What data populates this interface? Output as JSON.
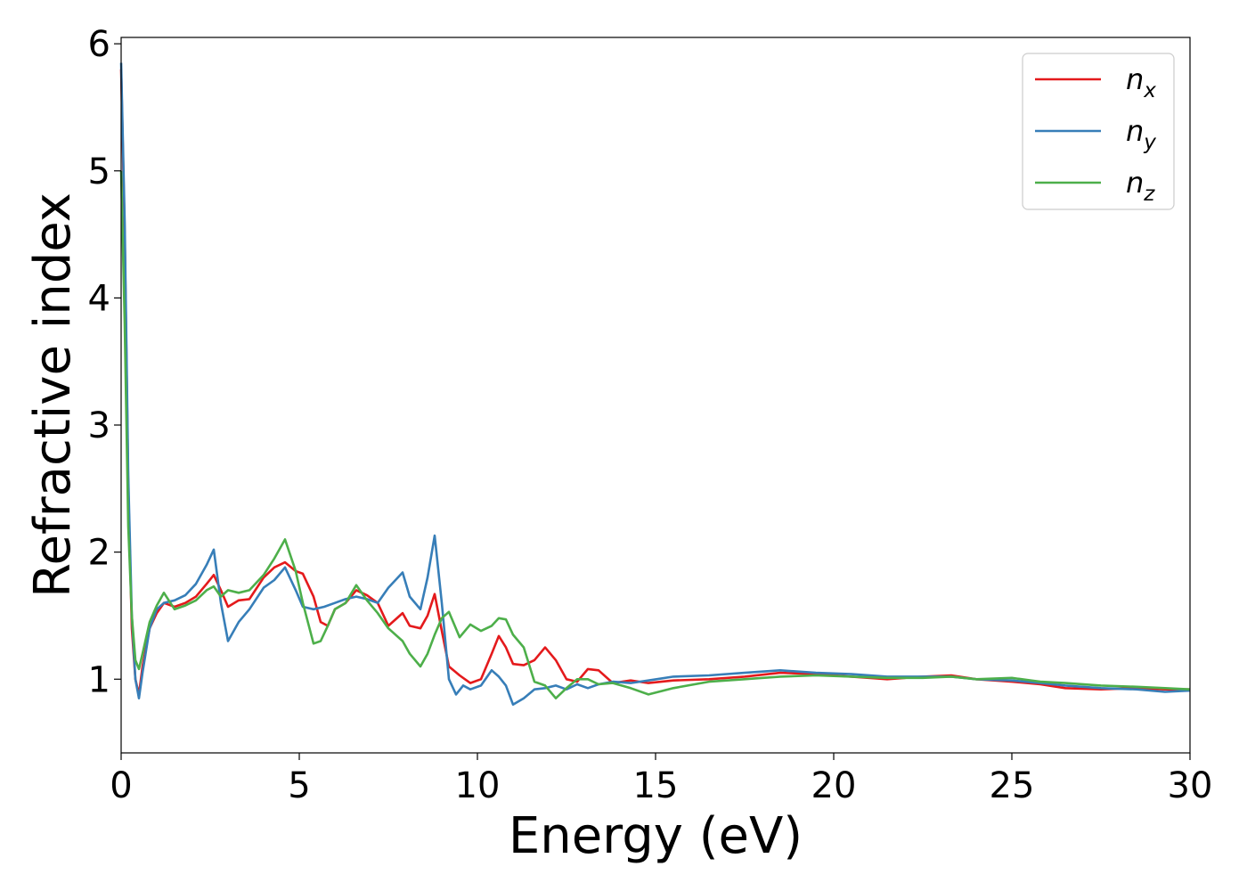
{
  "chart_data": {
    "type": "line",
    "title": "",
    "xlabel": "Energy (eV)",
    "ylabel": "Refractive index",
    "xlim": [
      0,
      30
    ],
    "ylim": [
      0.42,
      6.05
    ],
    "xticks": [
      0,
      5,
      10,
      15,
      20,
      25,
      30
    ],
    "xtick_labels": [
      "0",
      "5",
      "10",
      "15",
      "20",
      "25",
      "30"
    ],
    "yticks": [
      1,
      2,
      3,
      4,
      5,
      6
    ],
    "ytick_labels": [
      "1",
      "2",
      "3",
      "4",
      "5",
      "6"
    ],
    "grid": false,
    "legend_position": "top-right",
    "series": [
      {
        "name": "n_x",
        "label_base": "n",
        "label_sub": "x",
        "color": "#e41a1c",
        "points": [
          [
            0,
            5.8
          ],
          [
            0.1,
            4.5
          ],
          [
            0.2,
            2.5
          ],
          [
            0.3,
            1.4
          ],
          [
            0.4,
            1.0
          ],
          [
            0.5,
            0.88
          ],
          [
            0.6,
            1.1
          ],
          [
            0.8,
            1.4
          ],
          [
            1.0,
            1.52
          ],
          [
            1.2,
            1.6
          ],
          [
            1.5,
            1.57
          ],
          [
            1.8,
            1.6
          ],
          [
            2.1,
            1.65
          ],
          [
            2.4,
            1.75
          ],
          [
            2.6,
            1.82
          ],
          [
            2.8,
            1.7
          ],
          [
            3.0,
            1.57
          ],
          [
            3.3,
            1.62
          ],
          [
            3.6,
            1.63
          ],
          [
            4.0,
            1.8
          ],
          [
            4.3,
            1.88
          ],
          [
            4.6,
            1.92
          ],
          [
            4.9,
            1.85
          ],
          [
            5.1,
            1.83
          ],
          [
            5.4,
            1.65
          ],
          [
            5.6,
            1.45
          ],
          [
            5.8,
            1.42
          ],
          [
            6.0,
            1.55
          ],
          [
            6.3,
            1.6
          ],
          [
            6.6,
            1.7
          ],
          [
            6.9,
            1.66
          ],
          [
            7.2,
            1.6
          ],
          [
            7.5,
            1.42
          ],
          [
            7.9,
            1.52
          ],
          [
            8.1,
            1.42
          ],
          [
            8.4,
            1.4
          ],
          [
            8.6,
            1.5
          ],
          [
            8.8,
            1.67
          ],
          [
            9.0,
            1.38
          ],
          [
            9.2,
            1.1
          ],
          [
            9.5,
            1.03
          ],
          [
            9.8,
            0.97
          ],
          [
            10.1,
            1.0
          ],
          [
            10.4,
            1.2
          ],
          [
            10.6,
            1.34
          ],
          [
            10.8,
            1.25
          ],
          [
            11.0,
            1.12
          ],
          [
            11.3,
            1.11
          ],
          [
            11.6,
            1.15
          ],
          [
            11.9,
            1.25
          ],
          [
            12.2,
            1.15
          ],
          [
            12.5,
            1.0
          ],
          [
            12.8,
            0.98
          ],
          [
            13.1,
            1.08
          ],
          [
            13.4,
            1.07
          ],
          [
            13.8,
            0.97
          ],
          [
            14.3,
            0.99
          ],
          [
            14.8,
            0.97
          ],
          [
            15.5,
            0.99
          ],
          [
            16.5,
            1.0
          ],
          [
            17.5,
            1.02
          ],
          [
            18.5,
            1.05
          ],
          [
            19.5,
            1.04
          ],
          [
            20.5,
            1.02
          ],
          [
            21.5,
            1.0
          ],
          [
            22.5,
            1.02
          ],
          [
            23.3,
            1.03
          ],
          [
            24.0,
            1.0
          ],
          [
            25.0,
            0.98
          ],
          [
            25.8,
            0.96
          ],
          [
            26.5,
            0.93
          ],
          [
            27.5,
            0.92
          ],
          [
            28.5,
            0.93
          ],
          [
            29.3,
            0.92
          ],
          [
            30.0,
            0.92
          ]
        ]
      },
      {
        "name": "n_y",
        "label_base": "n",
        "label_sub": "y",
        "color": "#377eb8",
        "points": [
          [
            0,
            5.85
          ],
          [
            0.1,
            4.6
          ],
          [
            0.2,
            2.6
          ],
          [
            0.3,
            1.5
          ],
          [
            0.4,
            1.0
          ],
          [
            0.5,
            0.85
          ],
          [
            0.6,
            1.05
          ],
          [
            0.8,
            1.4
          ],
          [
            1.0,
            1.55
          ],
          [
            1.2,
            1.6
          ],
          [
            1.5,
            1.62
          ],
          [
            1.8,
            1.66
          ],
          [
            2.1,
            1.75
          ],
          [
            2.4,
            1.9
          ],
          [
            2.6,
            2.02
          ],
          [
            2.8,
            1.6
          ],
          [
            3.0,
            1.3
          ],
          [
            3.3,
            1.45
          ],
          [
            3.6,
            1.55
          ],
          [
            4.0,
            1.72
          ],
          [
            4.3,
            1.78
          ],
          [
            4.6,
            1.88
          ],
          [
            4.9,
            1.7
          ],
          [
            5.1,
            1.57
          ],
          [
            5.4,
            1.55
          ],
          [
            5.7,
            1.57
          ],
          [
            6.0,
            1.6
          ],
          [
            6.3,
            1.63
          ],
          [
            6.6,
            1.65
          ],
          [
            6.9,
            1.63
          ],
          [
            7.2,
            1.6
          ],
          [
            7.5,
            1.72
          ],
          [
            7.9,
            1.84
          ],
          [
            8.1,
            1.65
          ],
          [
            8.4,
            1.55
          ],
          [
            8.6,
            1.8
          ],
          [
            8.8,
            2.13
          ],
          [
            9.0,
            1.6
          ],
          [
            9.2,
            1.0
          ],
          [
            9.4,
            0.88
          ],
          [
            9.6,
            0.95
          ],
          [
            9.8,
            0.92
          ],
          [
            10.1,
            0.95
          ],
          [
            10.4,
            1.07
          ],
          [
            10.6,
            1.02
          ],
          [
            10.8,
            0.95
          ],
          [
            11.0,
            0.8
          ],
          [
            11.3,
            0.85
          ],
          [
            11.6,
            0.92
          ],
          [
            11.9,
            0.93
          ],
          [
            12.2,
            0.95
          ],
          [
            12.5,
            0.92
          ],
          [
            12.8,
            0.96
          ],
          [
            13.1,
            0.93
          ],
          [
            13.4,
            0.96
          ],
          [
            13.8,
            0.98
          ],
          [
            14.3,
            0.97
          ],
          [
            14.8,
            0.99
          ],
          [
            15.5,
            1.02
          ],
          [
            16.5,
            1.03
          ],
          [
            17.5,
            1.05
          ],
          [
            18.5,
            1.07
          ],
          [
            19.5,
            1.05
          ],
          [
            20.5,
            1.04
          ],
          [
            21.5,
            1.02
          ],
          [
            22.5,
            1.02
          ],
          [
            23.3,
            1.02
          ],
          [
            24.0,
            1.0
          ],
          [
            25.0,
            0.99
          ],
          [
            25.8,
            0.97
          ],
          [
            26.5,
            0.95
          ],
          [
            27.5,
            0.93
          ],
          [
            28.5,
            0.92
          ],
          [
            29.3,
            0.9
          ],
          [
            30.0,
            0.91
          ]
        ]
      },
      {
        "name": "n_z",
        "label_base": "n",
        "label_sub": "z",
        "color": "#4daf4a",
        "points": [
          [
            0,
            5.0
          ],
          [
            0.1,
            3.8
          ],
          [
            0.2,
            2.2
          ],
          [
            0.3,
            1.5
          ],
          [
            0.4,
            1.15
          ],
          [
            0.5,
            1.08
          ],
          [
            0.6,
            1.2
          ],
          [
            0.8,
            1.45
          ],
          [
            1.0,
            1.58
          ],
          [
            1.2,
            1.68
          ],
          [
            1.5,
            1.55
          ],
          [
            1.8,
            1.58
          ],
          [
            2.1,
            1.62
          ],
          [
            2.4,
            1.7
          ],
          [
            2.6,
            1.73
          ],
          [
            2.8,
            1.65
          ],
          [
            3.0,
            1.7
          ],
          [
            3.3,
            1.68
          ],
          [
            3.6,
            1.7
          ],
          [
            4.0,
            1.82
          ],
          [
            4.3,
            1.95
          ],
          [
            4.6,
            2.1
          ],
          [
            4.9,
            1.85
          ],
          [
            5.1,
            1.6
          ],
          [
            5.4,
            1.28
          ],
          [
            5.6,
            1.3
          ],
          [
            5.8,
            1.42
          ],
          [
            6.0,
            1.55
          ],
          [
            6.3,
            1.6
          ],
          [
            6.6,
            1.74
          ],
          [
            6.9,
            1.62
          ],
          [
            7.2,
            1.52
          ],
          [
            7.5,
            1.4
          ],
          [
            7.9,
            1.3
          ],
          [
            8.1,
            1.2
          ],
          [
            8.4,
            1.1
          ],
          [
            8.6,
            1.2
          ],
          [
            8.8,
            1.35
          ],
          [
            9.0,
            1.48
          ],
          [
            9.2,
            1.53
          ],
          [
            9.5,
            1.33
          ],
          [
            9.8,
            1.43
          ],
          [
            10.1,
            1.38
          ],
          [
            10.4,
            1.42
          ],
          [
            10.6,
            1.48
          ],
          [
            10.8,
            1.47
          ],
          [
            11.0,
            1.35
          ],
          [
            11.3,
            1.25
          ],
          [
            11.6,
            0.98
          ],
          [
            11.9,
            0.95
          ],
          [
            12.2,
            0.85
          ],
          [
            12.5,
            0.93
          ],
          [
            12.8,
            1.0
          ],
          [
            13.1,
            1.0
          ],
          [
            13.4,
            0.96
          ],
          [
            13.8,
            0.97
          ],
          [
            14.3,
            0.93
          ],
          [
            14.8,
            0.88
          ],
          [
            15.5,
            0.93
          ],
          [
            16.5,
            0.98
          ],
          [
            17.5,
            1.0
          ],
          [
            18.5,
            1.02
          ],
          [
            19.5,
            1.03
          ],
          [
            20.5,
            1.02
          ],
          [
            21.5,
            1.01
          ],
          [
            22.5,
            1.01
          ],
          [
            23.3,
            1.02
          ],
          [
            24.0,
            1.0
          ],
          [
            25.0,
            1.01
          ],
          [
            25.8,
            0.98
          ],
          [
            26.5,
            0.97
          ],
          [
            27.5,
            0.95
          ],
          [
            28.5,
            0.94
          ],
          [
            29.3,
            0.93
          ],
          [
            30.0,
            0.92
          ]
        ]
      }
    ]
  }
}
